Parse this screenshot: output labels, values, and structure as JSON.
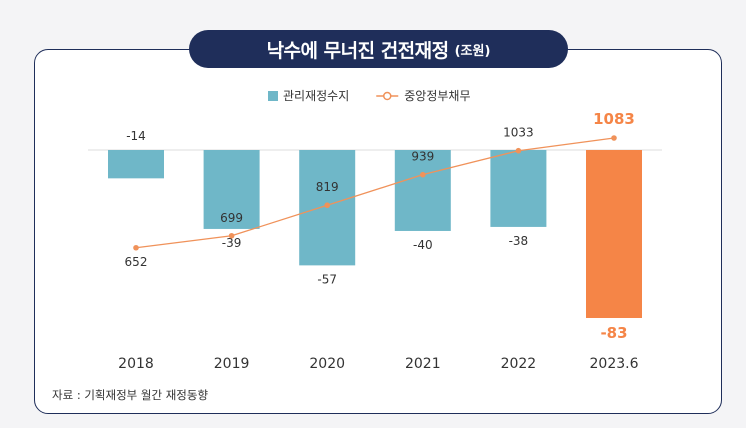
{
  "title": {
    "main": "낙수에 무너진 건전재정",
    "unit": "(조원)"
  },
  "source": "자료 : 기획재정부 월간 재정동향",
  "colors": {
    "bar": "#6fb7c8",
    "bar_highlight": "#f58547",
    "line": "#f0925a",
    "title_bg": "#1f2e5a",
    "border": "#1f2e5a"
  },
  "chart_data": {
    "type": "bar",
    "title": "낙수에 무너진 건전재정 (조원)",
    "categories": [
      "2018",
      "2019",
      "2020",
      "2021",
      "2022",
      "2023.6"
    ],
    "legend_position": "top-center",
    "series": [
      {
        "name": "관리재정수지",
        "type": "bar",
        "values": [
          -14,
          -39,
          -57,
          -40,
          -38,
          -83
        ],
        "labels": [
          "-14",
          "-39",
          "-57",
          "-40",
          "-38",
          "-83"
        ]
      },
      {
        "name": "중앙정부채무",
        "type": "line",
        "values": [
          652,
          699,
          819,
          939,
          1033,
          1083
        ],
        "labels": [
          "652",
          "699",
          "819",
          "939",
          "1033",
          "1083"
        ]
      }
    ],
    "highlight_index": 5,
    "bar_ylim": [
      -83,
      0
    ],
    "line_ylim": [
      600,
      1083
    ]
  }
}
